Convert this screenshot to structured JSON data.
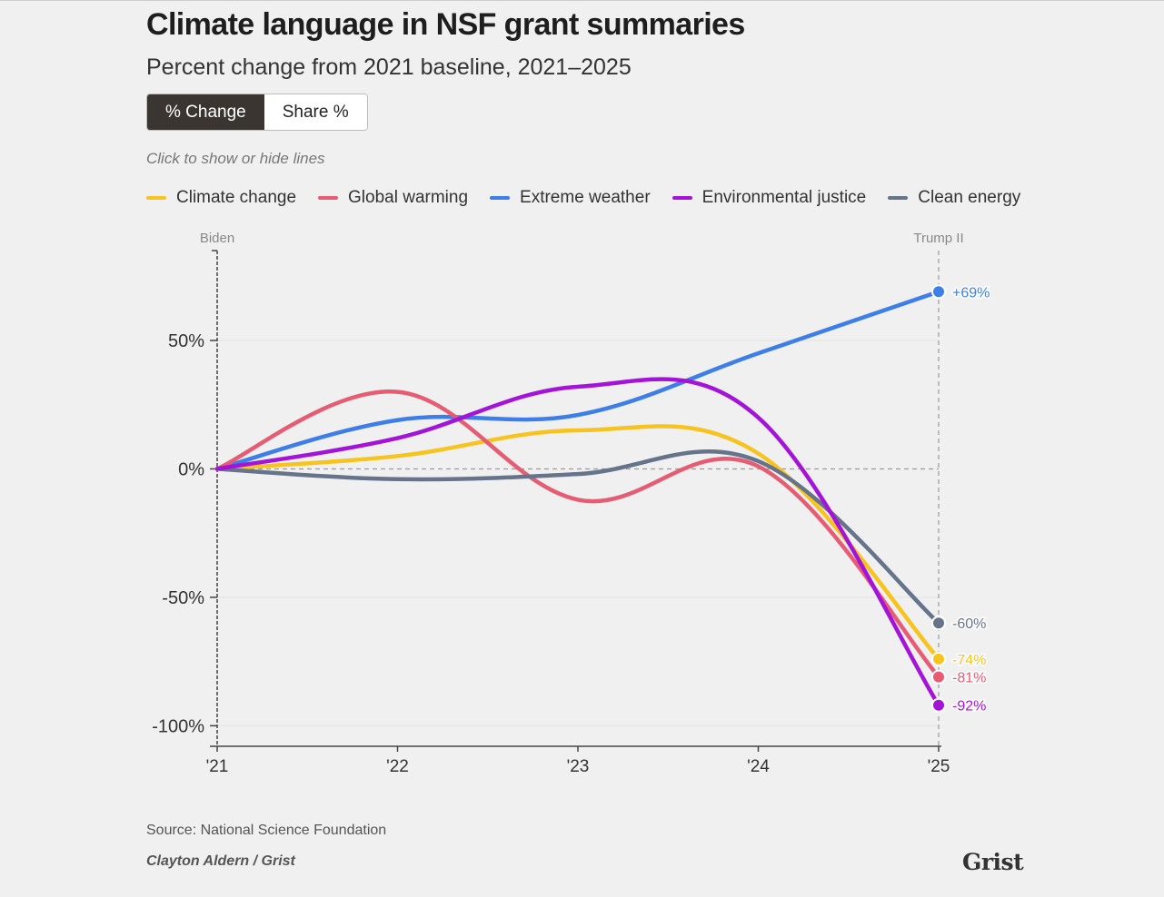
{
  "title": "Climate language in NSF grant summaries",
  "subtitle": "Percent change from 2021 baseline, 2021–2025",
  "toggle": {
    "options": [
      "% Change",
      "Share %"
    ],
    "active": "% Change"
  },
  "hint": "Click to show or hide lines",
  "footer": {
    "source": "Source: National Science Foundation",
    "byline": "Clayton Aldern / Grist",
    "logo": "Grist"
  },
  "chart_data": {
    "type": "line",
    "x": [
      2021,
      2022,
      2023,
      2024,
      2025
    ],
    "x_tick_labels": [
      "'21",
      "'22",
      "'23",
      "'24",
      "'25"
    ],
    "ylim": [
      -108,
      85
    ],
    "y_ticks": [
      50,
      0,
      -50,
      -100
    ],
    "y_tick_labels": [
      "50%",
      "0%",
      "-50%",
      "-100%"
    ],
    "period_labels": {
      "start": "Biden",
      "end": "Trump II"
    },
    "legend_position": "top",
    "grid": true,
    "series": [
      {
        "name": "Climate change",
        "color": "#f7c31e",
        "values": [
          0,
          5,
          15,
          6,
          -74
        ],
        "end_label": "-74%"
      },
      {
        "name": "Global warming",
        "color": "#e65c72",
        "values": [
          0,
          30,
          -12,
          1,
          -81
        ],
        "end_label": "-81%"
      },
      {
        "name": "Extreme weather",
        "color": "#3d7ee8",
        "values": [
          0,
          19,
          21,
          45,
          69
        ],
        "end_label": "+69%"
      },
      {
        "name": "Environmental justice",
        "color": "#a414d8",
        "values": [
          0,
          12,
          32,
          20,
          -92
        ],
        "end_label": "-92%"
      },
      {
        "name": "Clean energy",
        "color": "#65748a",
        "values": [
          0,
          -4,
          -2,
          3,
          -60
        ],
        "end_label": "-60%"
      }
    ]
  }
}
